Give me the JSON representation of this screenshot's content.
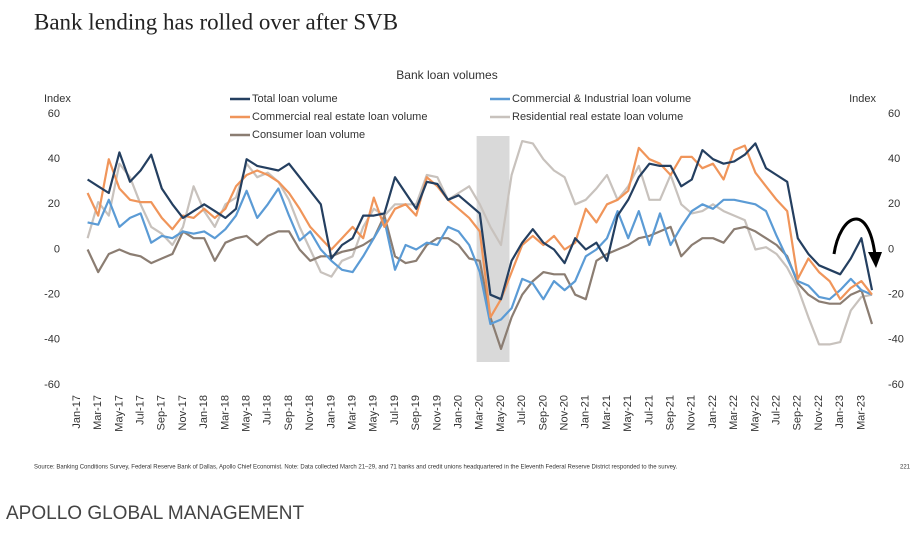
{
  "header": {
    "title": "Bank lending has rolled over after SVB"
  },
  "chart_data": {
    "type": "line",
    "title": "Bank loan volumes",
    "y_label": "Index",
    "y2_label": "Index",
    "categories": [
      "Jan-17",
      null,
      "Mar-17",
      null,
      "May-17",
      null,
      "Jul-17",
      null,
      "Sep-17",
      null,
      "Nov-17",
      null,
      "Jan-18",
      null,
      "Mar-18",
      null,
      "May-18",
      null,
      "Jul-18",
      null,
      "Sep-18",
      null,
      "Nov-18",
      null,
      "Jan-19",
      null,
      "Mar-19",
      null,
      "May-19",
      null,
      "Jul-19",
      null,
      "Sep-19",
      null,
      "Nov-19",
      null,
      "Jan-20",
      null,
      "Mar-20",
      null,
      "May-20",
      null,
      "Jul-20",
      null,
      "Sep-20",
      null,
      "Nov-20",
      null,
      "Jan-21",
      null,
      "Mar-21",
      null,
      "May-21",
      null,
      "Jul-21",
      null,
      "Sep-21",
      null,
      "Nov-21",
      null,
      "Jan-22",
      null,
      "Mar-22",
      null,
      "May-22",
      null,
      "Jul-22",
      null,
      "Sep-22",
      null,
      "Nov-22",
      null,
      "Jan-23",
      null,
      "Mar-23",
      null
    ],
    "series": [
      {
        "name": "Total loan volume",
        "color": "#243f60",
        "values": [
          null,
          31,
          28,
          25,
          43,
          30,
          35,
          42,
          27,
          20,
          14,
          17,
          20,
          17,
          14,
          18,
          40,
          37,
          36,
          35,
          38,
          32,
          26,
          20,
          -4,
          2,
          5,
          15,
          15,
          16,
          32,
          25,
          18,
          30,
          29,
          22,
          24,
          20,
          16,
          -20,
          -22,
          -5,
          3,
          9,
          3,
          0,
          -6,
          5,
          0,
          3,
          -5,
          15,
          22,
          32,
          38,
          37,
          37,
          28,
          31,
          44,
          40,
          38,
          39,
          42,
          47,
          36,
          33,
          30,
          5,
          -2,
          -7,
          -9,
          -11,
          -4,
          5,
          -18
        ]
      },
      {
        "name": "Commercial & Industrial loan volume",
        "color": "#5b9bd5",
        "values": [
          null,
          12,
          11,
          22,
          10,
          14,
          16,
          3,
          6,
          5,
          8,
          7,
          8,
          5,
          9,
          15,
          26,
          14,
          20,
          27,
          15,
          4,
          8,
          0,
          -5,
          -9,
          -10,
          -3,
          5,
          13,
          -9,
          2,
          0,
          3,
          2,
          10,
          8,
          2,
          -10,
          -33,
          -31,
          -26,
          -13,
          -15,
          -22,
          -14,
          -18,
          -14,
          -3,
          0,
          5,
          17,
          5,
          17,
          2,
          16,
          2,
          10,
          17,
          20,
          18,
          22,
          22,
          21,
          20,
          17,
          6,
          -4,
          -14,
          -16,
          -21,
          -22,
          -18,
          -13,
          -18,
          -20
        ]
      },
      {
        "name": "Commercial real estate loan volume",
        "color": "#f0955a",
        "values": [
          null,
          25,
          15,
          40,
          27,
          22,
          21,
          21,
          14,
          9,
          15,
          14,
          18,
          14,
          18,
          28,
          33,
          35,
          33,
          30,
          25,
          18,
          10,
          5,
          0,
          5,
          10,
          5,
          23,
          10,
          18,
          20,
          15,
          32,
          28,
          22,
          18,
          14,
          8,
          -30,
          -22,
          -10,
          2,
          6,
          2,
          6,
          0,
          3,
          18,
          12,
          20,
          22,
          26,
          45,
          40,
          38,
          33,
          41,
          41,
          36,
          38,
          31,
          44,
          46,
          34,
          28,
          22,
          17,
          -13,
          -4,
          -10,
          -14,
          -22,
          -17,
          -14,
          -20
        ]
      },
      {
        "name": "Residential real estate loan volume",
        "color": "#c8c2bd",
        "values": [
          null,
          5,
          21,
          15,
          38,
          32,
          20,
          10,
          7,
          2,
          10,
          28,
          17,
          10,
          20,
          23,
          38,
          32,
          34,
          30,
          22,
          10,
          0,
          -10,
          -12,
          -5,
          -3,
          10,
          18,
          15,
          20,
          20,
          20,
          33,
          32,
          22,
          25,
          28,
          20,
          10,
          2,
          33,
          48,
          47,
          40,
          35,
          32,
          20,
          22,
          27,
          33,
          22,
          28,
          37,
          22,
          22,
          33,
          20,
          16,
          17,
          20,
          17,
          15,
          13,
          0,
          1,
          -2,
          -8,
          -17,
          -30,
          -42,
          -42,
          -41,
          -27,
          -21,
          -20
        ]
      },
      {
        "name": "Consumer loan volume",
        "color": "#8b7d72",
        "values": [
          null,
          0,
          -10,
          -2,
          0,
          -2,
          -3,
          -6,
          -4,
          -2,
          8,
          5,
          5,
          -5,
          3,
          5,
          6,
          2,
          6,
          8,
          8,
          0,
          -5,
          -3,
          -3,
          -1,
          0,
          2,
          5,
          15,
          -3,
          -6,
          -5,
          2,
          5,
          5,
          2,
          -4,
          -5,
          -30,
          -44,
          -30,
          -20,
          -14,
          -10,
          -11,
          -11,
          -20,
          -22,
          -5,
          -2,
          0,
          2,
          5,
          6,
          8,
          10,
          -3,
          2,
          5,
          5,
          3,
          9,
          10,
          8,
          5,
          2,
          -3,
          -15,
          -20,
          -23,
          -24,
          -24,
          -20,
          -18,
          -33
        ]
      }
    ],
    "shaded": {
      "from": "Mar-20",
      "to": "May-20"
    },
    "ylim": [
      -60,
      60
    ],
    "yticks": [
      -60,
      -40,
      -20,
      0,
      20,
      40,
      60
    ],
    "y2lim": [
      -60,
      60
    ],
    "y2ticks": [
      -60,
      -40,
      -20,
      0,
      20,
      40,
      60
    ],
    "source": "Source: Banking Conditions Survey, Federal Reserve Bank of Dallas, Apollo Chief Economist. Note: Data collected March 21–29, and 71 banks and credit unions headquartered in the Eleventh Federal Reserve District responded to the survey.",
    "page_number": "221"
  },
  "footer": {
    "brand": "APOLLO GLOBAL MANAGEMENT"
  }
}
